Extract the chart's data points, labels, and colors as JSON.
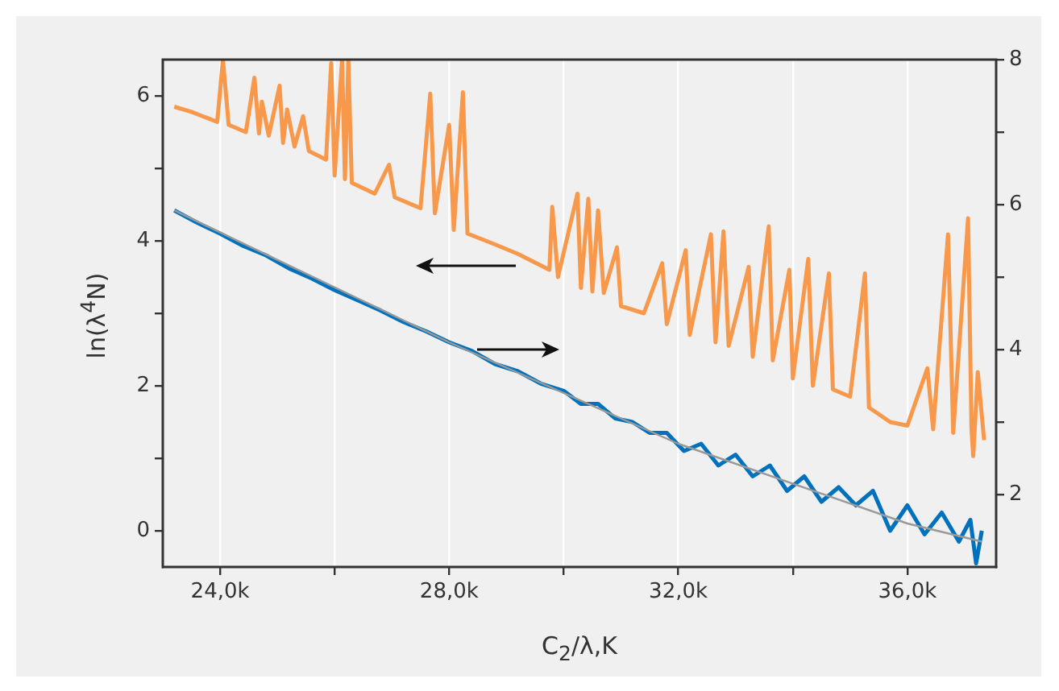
{
  "chart_data": {
    "type": "line",
    "xlabel": "C$_{2}$/λ,K",
    "ylabel": "ln(λ$^{4}$N)",
    "xlim": [
      23000,
      37550
    ],
    "xticks": [
      {
        "value": 24000,
        "label": "24,0k"
      },
      {
        "value": 26000,
        "label": null
      },
      {
        "value": 28000,
        "label": "28,0k"
      },
      {
        "value": 30000,
        "label": null
      },
      {
        "value": 32000,
        "label": "32,0k"
      },
      {
        "value": 34000,
        "label": null
      },
      {
        "value": 36000,
        "label": "36,0k"
      }
    ],
    "ylim": [
      -0.5,
      6.5
    ],
    "yticks": [
      0,
      {
        "value": 1,
        "label": null
      },
      2,
      {
        "value": 3,
        "label": null
      },
      4,
      {
        "value": 5,
        "label": null
      },
      6
    ],
    "y2lim": [
      1,
      8
    ],
    "y2ticks": [
      2,
      {
        "value": 3,
        "label": null
      },
      4,
      {
        "value": 5,
        "label": null
      },
      6,
      {
        "value": 7,
        "label": null
      },
      8
    ],
    "grid": "x",
    "legend": false,
    "marker": "none",
    "line_style": "solid",
    "series": [
      {
        "color": "#f7984a",
        "axis": "y2",
        "x": [
          23200,
          23500,
          23950,
          24050,
          24150,
          24450,
          24600,
          24680,
          24730,
          24850,
          25040,
          25100,
          25170,
          25300,
          25450,
          25550,
          25850,
          25940,
          26000,
          26130,
          26180,
          26240,
          26300,
          26700,
          26950,
          27050,
          27500,
          27670,
          27750,
          28000,
          28080,
          28240,
          28320,
          28800,
          29200,
          29750,
          29800,
          29900,
          30240,
          30300,
          30430,
          30500,
          30600,
          30700,
          30930,
          31000,
          31400,
          31720,
          31800,
          32130,
          32200,
          32570,
          32650,
          32790,
          32880,
          33230,
          33300,
          33580,
          33650,
          33940,
          34000,
          34270,
          34350,
          34630,
          34700,
          35000,
          35260,
          35330,
          35700,
          36000,
          36350,
          36450,
          36710,
          36800,
          37060,
          37120,
          37150,
          37230,
          37340
        ],
        "values": [
          7.35,
          7.28,
          7.14,
          8.0,
          7.1,
          7.0,
          7.75,
          6.98,
          7.42,
          6.95,
          7.64,
          6.85,
          7.31,
          6.8,
          7.22,
          6.74,
          6.62,
          7.95,
          6.4,
          8.0,
          6.35,
          8.0,
          6.3,
          6.15,
          6.55,
          6.1,
          5.95,
          7.53,
          5.88,
          7.1,
          5.65,
          7.55,
          5.6,
          5.45,
          5.32,
          5.1,
          5.97,
          5.0,
          6.15,
          4.85,
          6.08,
          4.8,
          5.92,
          4.78,
          5.41,
          4.6,
          4.5,
          5.19,
          4.35,
          5.37,
          4.2,
          5.59,
          4.1,
          5.63,
          4.05,
          5.14,
          3.9,
          5.7,
          3.85,
          5.1,
          3.6,
          5.25,
          3.5,
          5.05,
          3.45,
          3.35,
          5.05,
          3.2,
          3.0,
          2.95,
          3.74,
          2.9,
          5.59,
          2.85,
          5.81,
          2.9,
          2.53,
          3.69,
          2.75
        ]
      },
      {
        "color": "#0072bd",
        "x": [
          23200,
          23600,
          24000,
          24400,
          24800,
          25200,
          25600,
          26000,
          26400,
          26800,
          27200,
          27600,
          28000,
          28400,
          28800,
          29200,
          29600,
          30000,
          30300,
          30600,
          30900,
          31200,
          31500,
          31800,
          32100,
          32400,
          32700,
          33000,
          33300,
          33600,
          33900,
          34200,
          34500,
          34800,
          35100,
          35400,
          35700,
          36000,
          36300,
          36600,
          36900,
          37100,
          37200,
          37300
        ],
        "values": [
          4.42,
          4.25,
          4.1,
          3.93,
          3.8,
          3.62,
          3.48,
          3.32,
          3.18,
          3.04,
          2.88,
          2.75,
          2.6,
          2.48,
          2.3,
          2.2,
          2.03,
          1.93,
          1.75,
          1.75,
          1.55,
          1.5,
          1.35,
          1.35,
          1.1,
          1.2,
          0.9,
          1.05,
          0.75,
          0.9,
          0.55,
          0.75,
          0.4,
          0.6,
          0.35,
          0.55,
          0.0,
          0.35,
          -0.05,
          0.25,
          -0.15,
          0.15,
          -0.45,
          0.0
        ]
      },
      {
        "color": "#999999",
        "x": [
          23200,
          28000,
          32000,
          36000,
          37300
        ],
        "values": [
          4.42,
          2.6,
          1.2,
          0.1,
          -0.15
        ]
      }
    ]
  }
}
